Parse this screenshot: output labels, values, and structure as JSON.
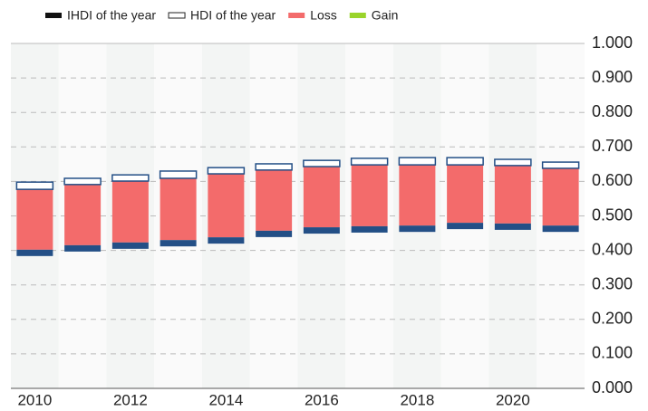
{
  "chart_data": {
    "type": "range-bar",
    "categories": [
      "2010",
      null,
      "2012",
      null,
      "2014",
      null,
      "2016",
      null,
      "2018",
      null,
      "2020",
      null
    ],
    "series": [
      {
        "name": "IHDI of the year",
        "color": "#234f86",
        "values": [
          0.402,
          0.415,
          0.423,
          0.43,
          0.438,
          0.457,
          0.467,
          0.47,
          0.472,
          0.48,
          0.478,
          0.472
        ]
      },
      {
        "name": "HDI of the year",
        "color": "#234f86",
        "values": [
          0.598,
          0.609,
          0.619,
          0.63,
          0.64,
          0.651,
          0.661,
          0.667,
          0.669,
          0.669,
          0.664,
          0.656
        ]
      },
      {
        "name": "Loss",
        "color": "#f36b6b",
        "values": [
          0.175,
          0.176,
          0.178,
          0.179,
          0.184,
          0.176,
          0.176,
          0.178,
          0.176,
          0.168,
          0.168,
          0.166
        ]
      },
      {
        "name": "Gain",
        "color": "#9ad42b",
        "values": [
          null,
          null,
          null,
          null,
          null,
          null,
          null,
          null,
          null,
          null,
          null,
          null
        ]
      }
    ],
    "ylim": [
      0,
      1
    ],
    "yticks": [
      {
        "value": 0,
        "label": "0.000"
      },
      {
        "value": 0.1,
        "label": "0.100"
      },
      {
        "value": 0.2,
        "label": "0.200"
      },
      {
        "value": 0.3,
        "label": "0.300"
      },
      {
        "value": 0.4,
        "label": "0.400"
      },
      {
        "value": 0.5,
        "label": "0.500"
      },
      {
        "value": 0.6,
        "label": "0.600"
      },
      {
        "value": 0.7,
        "label": "0.700"
      },
      {
        "value": 0.8,
        "label": "0.800"
      },
      {
        "value": 0.9,
        "label": "0.900"
      },
      {
        "value": 1,
        "label": "1.000"
      }
    ],
    "grid": true,
    "legend": "top-left"
  }
}
